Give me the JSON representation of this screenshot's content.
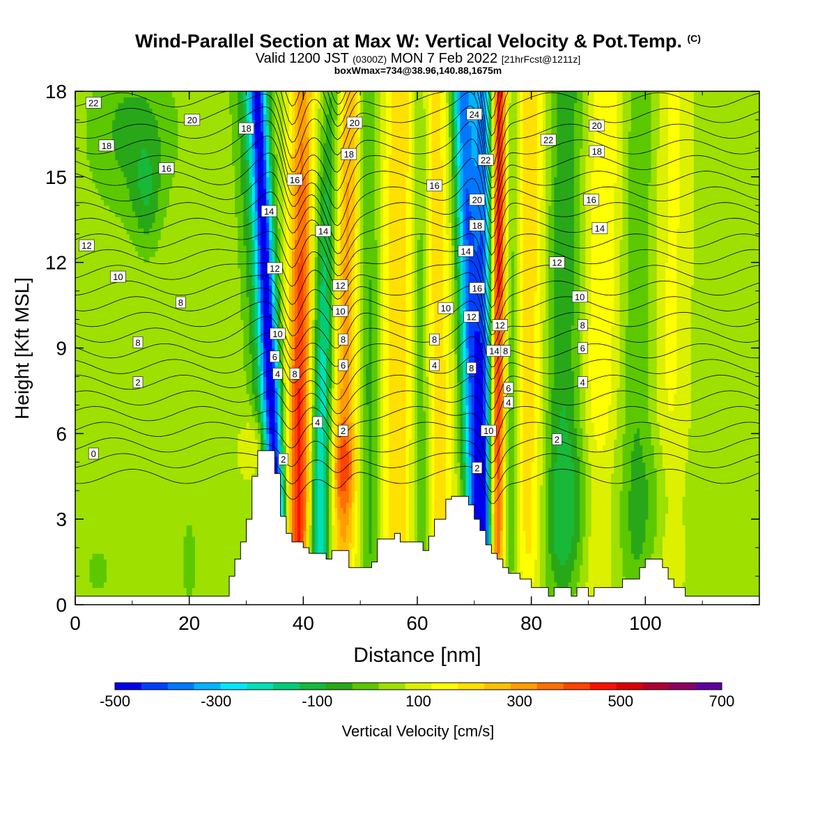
{
  "titles": {
    "main": "Wind-Parallel Section at Max W: Vertical Velocity & Pot.Temp.",
    "main_mark": "(C)",
    "valid_prefix": "Valid 1200 JST",
    "valid_zulu": "(0300Z)",
    "valid_date": "MON 7 Feb 2022",
    "valid_fcst": "[21hrFcst@1211z]",
    "box": "boxWmax=734@38.96,140.88,1675m"
  },
  "chart_data": {
    "type": "heatmap",
    "xlabel": "Distance [nm]",
    "ylabel": "Height [Kft MSL]",
    "xlim": [
      0,
      120
    ],
    "ylim": [
      0,
      18
    ],
    "xticks": [
      "0",
      "20",
      "40",
      "60",
      "80",
      "100"
    ],
    "yticks": [
      "0",
      "3",
      "6",
      "9",
      "12",
      "15",
      "18"
    ],
    "colorbar": {
      "label": "Vertical Velocity [cm/s]",
      "tick_labels": [
        "-500",
        "-300",
        "-100",
        "100",
        "300",
        "500",
        "700"
      ],
      "colors": [
        "#0000ee",
        "#0040ff",
        "#0078ff",
        "#00b4ff",
        "#00e8ff",
        "#00e0b8",
        "#00cc78",
        "#18b838",
        "#28a818",
        "#5cc800",
        "#9ee000",
        "#dcf000",
        "#ffff00",
        "#ffe000",
        "#ffc000",
        "#ff9c00",
        "#ff7000",
        "#ff4400",
        "#ff1000",
        "#dd0000",
        "#b00030",
        "#8c0060",
        "#6000a0"
      ]
    },
    "terrain": [
      [
        0,
        0.3
      ],
      [
        27,
        0.3
      ],
      [
        27,
        1
      ],
      [
        28,
        1
      ],
      [
        28,
        1.6
      ],
      [
        29,
        1.6
      ],
      [
        29,
        2.2
      ],
      [
        30,
        2.2
      ],
      [
        30,
        3
      ],
      [
        31,
        3
      ],
      [
        31,
        4.5
      ],
      [
        32,
        4.5
      ],
      [
        32,
        5.4
      ],
      [
        35,
        5.4
      ],
      [
        35,
        4.6
      ],
      [
        36,
        4.6
      ],
      [
        36,
        3.1
      ],
      [
        37,
        3.1
      ],
      [
        37,
        2.5
      ],
      [
        38,
        2.5
      ],
      [
        38,
        2.2
      ],
      [
        40,
        2.2
      ],
      [
        40,
        2.0
      ],
      [
        41,
        2.0
      ],
      [
        41,
        1.8
      ],
      [
        44,
        1.8
      ],
      [
        44,
        1.6
      ],
      [
        45,
        1.6
      ],
      [
        45,
        1.9
      ],
      [
        48,
        1.9
      ],
      [
        48,
        1.3
      ],
      [
        52,
        1.3
      ],
      [
        52,
        1.5
      ],
      [
        53,
        1.5
      ],
      [
        53,
        2.3
      ],
      [
        56,
        2.3
      ],
      [
        56,
        2.5
      ],
      [
        57,
        2.5
      ],
      [
        57,
        2.2
      ],
      [
        61,
        2.2
      ],
      [
        61,
        1.9
      ],
      [
        62,
        1.9
      ],
      [
        62,
        2.4
      ],
      [
        63,
        2.4
      ],
      [
        63,
        3.0
      ],
      [
        65,
        3.0
      ],
      [
        65,
        3.7
      ],
      [
        66,
        3.7
      ],
      [
        66,
        3.8
      ],
      [
        69,
        3.8
      ],
      [
        69,
        3.5
      ],
      [
        70,
        3.5
      ],
      [
        70,
        3.0
      ],
      [
        71,
        3.0
      ],
      [
        71,
        2.6
      ],
      [
        72,
        2.6
      ],
      [
        72,
        2.1
      ],
      [
        73,
        2.1
      ],
      [
        73,
        1.8
      ],
      [
        74,
        1.8
      ],
      [
        74,
        1.6
      ],
      [
        75,
        1.6
      ],
      [
        75,
        1.3
      ],
      [
        76,
        1.3
      ],
      [
        76,
        1.1
      ],
      [
        78,
        1.1
      ],
      [
        78,
        0.9
      ],
      [
        80,
        0.9
      ],
      [
        80,
        0.6
      ],
      [
        83,
        0.6
      ],
      [
        83,
        0.3
      ],
      [
        84,
        0.3
      ],
      [
        84,
        0.6
      ],
      [
        87,
        0.6
      ],
      [
        87,
        0.3
      ],
      [
        88,
        0.3
      ],
      [
        88,
        0.6
      ],
      [
        90,
        0.6
      ],
      [
        90,
        0.3
      ],
      [
        91,
        0.3
      ],
      [
        91,
        0.6
      ],
      [
        96,
        0.6
      ],
      [
        96,
        0.9
      ],
      [
        99,
        0.9
      ],
      [
        99,
        1.3
      ],
      [
        100,
        1.3
      ],
      [
        100,
        1.6
      ],
      [
        103,
        1.6
      ],
      [
        103,
        1.3
      ],
      [
        104,
        1.3
      ],
      [
        104,
        0.9
      ],
      [
        105,
        0.9
      ],
      [
        105,
        0.6
      ],
      [
        107,
        0.6
      ],
      [
        107,
        0.3
      ],
      [
        120,
        0.3
      ]
    ],
    "w_features": [
      {
        "type": "band",
        "x0": 35.5,
        "x1": 30.5,
        "w": 3.0,
        "v": -150
      },
      {
        "type": "band",
        "x0": 36.0,
        "x1": 32.0,
        "w": 1.6,
        "v": -420
      },
      {
        "type": "band",
        "x0": 38.8,
        "x1": 40.0,
        "w": 2.2,
        "v": 250
      },
      {
        "type": "band",
        "x0": 39.5,
        "x1": 41.5,
        "w": 2.6,
        "v": 180
      },
      {
        "type": "band",
        "x0": 43.5,
        "x1": 41.5,
        "w": 2.6,
        "v": -200
      },
      {
        "type": "band",
        "x0": 42.0,
        "x1": 45.5,
        "w": 1.8,
        "v": -160
      },
      {
        "type": "band",
        "x0": 46.5,
        "x1": 48.0,
        "w": 2.6,
        "v": 230
      },
      {
        "type": "band",
        "x0": 52.0,
        "x1": 51.0,
        "w": 2.0,
        "v": -120
      },
      {
        "type": "band",
        "x0": 56.0,
        "x1": 57.0,
        "w": 3.0,
        "v": 150
      },
      {
        "type": "band",
        "x0": 61.0,
        "x1": 60.5,
        "w": 1.6,
        "v": -120
      },
      {
        "type": "band",
        "x0": 64.0,
        "x1": 63.0,
        "w": 2.6,
        "v": 140
      },
      {
        "type": "band",
        "x0": 70.8,
        "x1": 68.0,
        "w": 2.0,
        "v": -420
      },
      {
        "type": "band",
        "x0": 72.5,
        "x1": 71.5,
        "w": 1.8,
        "v": -380
      },
      {
        "type": "band",
        "x0": 73.8,
        "x1": 74.5,
        "w": 1.5,
        "v": 560
      },
      {
        "type": "band",
        "x0": 76.0,
        "x1": 75.5,
        "w": 2.5,
        "v": -200
      },
      {
        "type": "band",
        "x0": 78.5,
        "x1": 79.5,
        "w": 3.0,
        "v": 170
      },
      {
        "type": "band",
        "x0": 85.0,
        "x1": 86.0,
        "w": 3.2,
        "v": -130
      },
      {
        "type": "band",
        "x0": 91.0,
        "x1": 93.0,
        "w": 3.0,
        "v": 110
      },
      {
        "type": "band",
        "x0": 98.0,
        "x1": 99.0,
        "w": 2.6,
        "v": -80
      },
      {
        "type": "band",
        "x0": 104.0,
        "x1": 105.0,
        "w": 2.6,
        "v": 70
      },
      {
        "type": "blob",
        "x": 10.0,
        "y": 16.5,
        "rx": 8,
        "ry": 3,
        "v": -110
      },
      {
        "type": "blob",
        "x": 12.5,
        "y": 14.2,
        "rx": 2.5,
        "ry": 2,
        "v": -90
      },
      {
        "type": "blob",
        "x": 47.0,
        "y": 4.8,
        "rx": 2.2,
        "ry": 1.6,
        "v": 140
      },
      {
        "type": "blob",
        "x": 32.0,
        "y": 5.5,
        "rx": 2.4,
        "ry": 1.2,
        "v": 130
      },
      {
        "type": "blob",
        "x": 89.0,
        "y": 3.5,
        "rx": 5,
        "ry": 2.8,
        "v": -100
      },
      {
        "type": "blob",
        "x": 102.0,
        "y": 3.5,
        "rx": 4,
        "ry": 2.5,
        "v": -70
      },
      {
        "type": "blob",
        "x": 20.0,
        "y": 1.5,
        "rx": 1.2,
        "ry": 1.5,
        "v": -80
      },
      {
        "type": "blob",
        "x": 4.0,
        "y": 1.2,
        "rx": 2,
        "ry": 0.8,
        "v": -70
      }
    ],
    "theta_labels": [
      {
        "text": "22",
        "x": 3.2,
        "y": 17.6
      },
      {
        "text": "20",
        "x": 20.5,
        "y": 17.0
      },
      {
        "text": "18",
        "x": 5.5,
        "y": 16.1
      },
      {
        "text": "16",
        "x": 16.0,
        "y": 15.3
      },
      {
        "text": "12",
        "x": 2.0,
        "y": 12.6
      },
      {
        "text": "10",
        "x": 7.5,
        "y": 11.5
      },
      {
        "text": "8",
        "x": 18.5,
        "y": 10.6
      },
      {
        "text": "8",
        "x": 11.0,
        "y": 9.2
      },
      {
        "text": "2",
        "x": 11.0,
        "y": 7.8
      },
      {
        "text": "0",
        "x": 3.2,
        "y": 5.3
      },
      {
        "text": "18",
        "x": 30.0,
        "y": 16.7
      },
      {
        "text": "16",
        "x": 38.5,
        "y": 14.9
      },
      {
        "text": "14",
        "x": 34.0,
        "y": 13.8
      },
      {
        "text": "14",
        "x": 43.5,
        "y": 13.1
      },
      {
        "text": "12",
        "x": 35.0,
        "y": 11.8
      },
      {
        "text": "12",
        "x": 46.5,
        "y": 11.2
      },
      {
        "text": "10",
        "x": 35.5,
        "y": 9.5
      },
      {
        "text": "10",
        "x": 46.5,
        "y": 10.3
      },
      {
        "text": "8",
        "x": 47.0,
        "y": 9.3
      },
      {
        "text": "8",
        "x": 38.5,
        "y": 8.1
      },
      {
        "text": "6",
        "x": 35.0,
        "y": 8.7
      },
      {
        "text": "6",
        "x": 47.0,
        "y": 8.4
      },
      {
        "text": "4",
        "x": 35.5,
        "y": 8.1
      },
      {
        "text": "4",
        "x": 42.5,
        "y": 6.4
      },
      {
        "text": "2",
        "x": 47.0,
        "y": 6.1
      },
      {
        "text": "2",
        "x": 36.5,
        "y": 5.1
      },
      {
        "text": "20",
        "x": 49.0,
        "y": 16.9
      },
      {
        "text": "18",
        "x": 48.0,
        "y": 15.8
      },
      {
        "text": "16",
        "x": 63.0,
        "y": 14.7
      },
      {
        "text": "10",
        "x": 65.0,
        "y": 10.4
      },
      {
        "text": "8",
        "x": 63.0,
        "y": 9.3
      },
      {
        "text": "4",
        "x": 63.0,
        "y": 8.4
      },
      {
        "text": "24",
        "x": 70.0,
        "y": 17.2
      },
      {
        "text": "22",
        "x": 72.0,
        "y": 15.6
      },
      {
        "text": "20",
        "x": 70.5,
        "y": 14.2
      },
      {
        "text": "18",
        "x": 70.5,
        "y": 13.3
      },
      {
        "text": "14",
        "x": 68.5,
        "y": 12.4
      },
      {
        "text": "16",
        "x": 70.5,
        "y": 11.1
      },
      {
        "text": "12",
        "x": 69.5,
        "y": 10.1
      },
      {
        "text": "12",
        "x": 74.5,
        "y": 9.8
      },
      {
        "text": "14",
        "x": 73.5,
        "y": 8.9
      },
      {
        "text": "8",
        "x": 75.5,
        "y": 8.9
      },
      {
        "text": "8",
        "x": 69.5,
        "y": 8.3
      },
      {
        "text": "6",
        "x": 76.0,
        "y": 7.6
      },
      {
        "text": "4",
        "x": 76.0,
        "y": 7.1
      },
      {
        "text": "10",
        "x": 72.5,
        "y": 6.1
      },
      {
        "text": "2",
        "x": 70.5,
        "y": 4.8
      },
      {
        "text": "22",
        "x": 83.0,
        "y": 16.3
      },
      {
        "text": "20",
        "x": 91.5,
        "y": 16.8
      },
      {
        "text": "18",
        "x": 91.5,
        "y": 15.9
      },
      {
        "text": "16",
        "x": 90.5,
        "y": 14.2
      },
      {
        "text": "14",
        "x": 92.0,
        "y": 13.2
      },
      {
        "text": "12",
        "x": 84.5,
        "y": 12.0
      },
      {
        "text": "10",
        "x": 88.5,
        "y": 10.8
      },
      {
        "text": "8",
        "x": 89.0,
        "y": 9.8
      },
      {
        "text": "6",
        "x": 89.0,
        "y": 9.0
      },
      {
        "text": "4",
        "x": 89.0,
        "y": 7.8
      },
      {
        "text": "2",
        "x": 84.5,
        "y": 5.8
      }
    ]
  }
}
